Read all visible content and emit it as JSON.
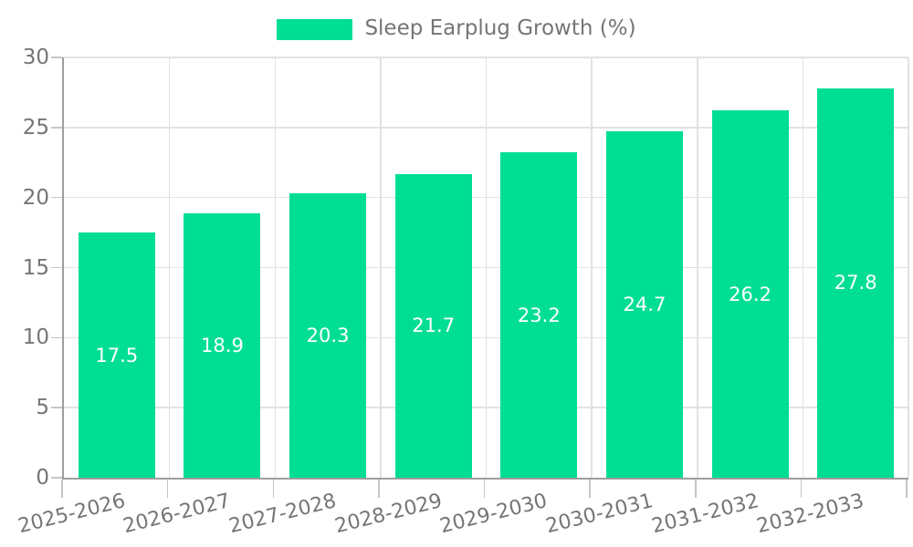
{
  "chart_data": {
    "type": "bar",
    "title": "",
    "legend": "Sleep Earplug Growth (%)",
    "legend_position": "top-center",
    "categories": [
      "2025-2026",
      "2026-2027",
      "2027-2028",
      "2028-2029",
      "2029-2030",
      "2030-2031",
      "2031-2032",
      "2032-2033"
    ],
    "values": [
      17.5,
      18.9,
      20.3,
      21.7,
      23.2,
      24.7,
      26.2,
      27.8
    ],
    "value_labels": [
      "17.5",
      "18.9",
      "20.3",
      "21.7",
      "23.2",
      "24.7",
      "26.2",
      "27.8"
    ],
    "xlabel": "",
    "ylabel": "",
    "ylim": [
      0,
      30
    ],
    "yticks": [
      0,
      5,
      10,
      15,
      20,
      25,
      30
    ],
    "grid": true,
    "x_tick_rotation_deg": -14,
    "colors": {
      "bar": "#00DE94",
      "value_label": "#FFFFFF",
      "axis_text": "#757575",
      "gridline": "#E2E2E2",
      "axis_line": "#9E9E9E",
      "tick": "#C6C6C6",
      "background": "#FFFFFF"
    }
  }
}
